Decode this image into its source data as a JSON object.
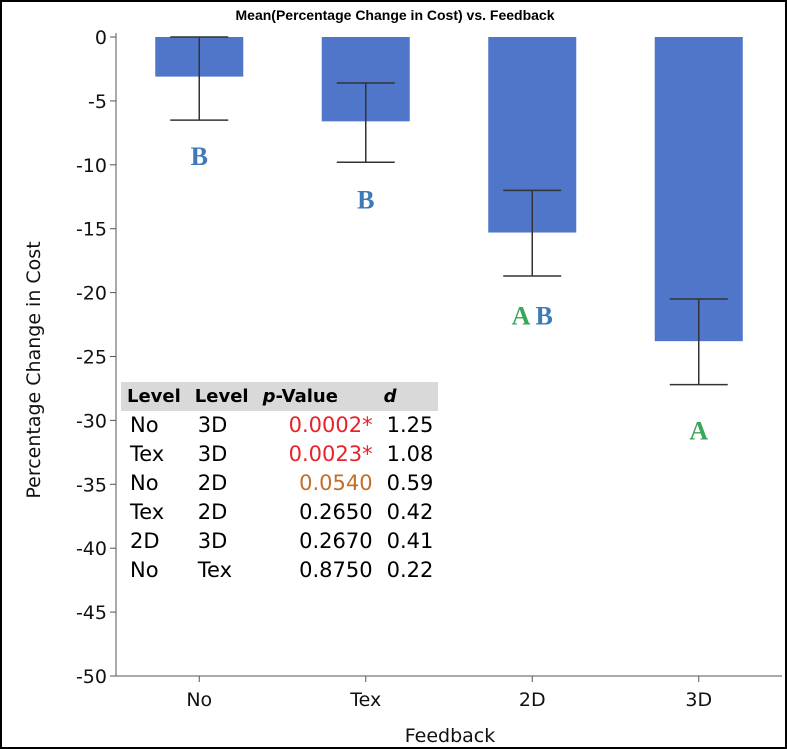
{
  "chart_data": {
    "type": "bar",
    "title": "Mean(Percentage Change in Cost) vs. Feedback",
    "xlabel": "Feedback",
    "ylabel": "Percentage Change in Cost",
    "categories": [
      "No",
      "Tex",
      "2D",
      "3D"
    ],
    "values": [
      -3.1,
      -6.6,
      -15.3,
      -23.8
    ],
    "error_low": [
      -6.5,
      -9.8,
      -18.7,
      -27.2
    ],
    "error_high": [
      0.0,
      -3.6,
      -12.0,
      -20.5
    ],
    "ylim": [
      -50,
      0
    ],
    "yticks": [
      0,
      -5,
      -10,
      -15,
      -20,
      -25,
      -30,
      -35,
      -40,
      -45,
      -50
    ],
    "bar_color": "#4f76c8",
    "grid": false,
    "legend": "none",
    "significance_groups": [
      {
        "category": "No",
        "label_y": -10,
        "parts": [
          {
            "text": "B",
            "color": "#3c7ab8"
          }
        ]
      },
      {
        "category": "Tex",
        "label_y": -13.4,
        "parts": [
          {
            "text": "B",
            "color": "#3c7ab8"
          }
        ]
      },
      {
        "category": "2D",
        "label_y": -22.5,
        "parts": [
          {
            "text": "A",
            "color": "#3aa65a"
          },
          {
            "text": "B",
            "color": "#3c7ab8"
          }
        ]
      },
      {
        "category": "3D",
        "label_y": -31.5,
        "parts": [
          {
            "text": "A",
            "color": "#3aa65a"
          }
        ]
      }
    ]
  },
  "stats_table": {
    "headers": {
      "level1": "Level",
      "level2": "Level",
      "p_italic": "p",
      "p_rest": "-Value",
      "d": "d"
    },
    "rows": [
      {
        "level1": "No",
        "level2": "3D",
        "p": "0.0002*",
        "d": "1.25",
        "p_color": "#e8232a"
      },
      {
        "level1": "Tex",
        "level2": "3D",
        "p": "0.0023*",
        "d": "1.08",
        "p_color": "#e8232a"
      },
      {
        "level1": "No",
        "level2": "2D",
        "p": "0.0540",
        "d": "0.59",
        "p_color": "#c0702a"
      },
      {
        "level1": "Tex",
        "level2": "2D",
        "p": "0.2650",
        "d": "0.42",
        "p_color": "#000000"
      },
      {
        "level1": "2D",
        "level2": "3D",
        "p": "0.2670",
        "d": "0.41",
        "p_color": "#000000"
      },
      {
        "level1": "No",
        "level2": "Tex",
        "p": "0.8750",
        "d": "0.22",
        "p_color": "#000000"
      }
    ]
  }
}
